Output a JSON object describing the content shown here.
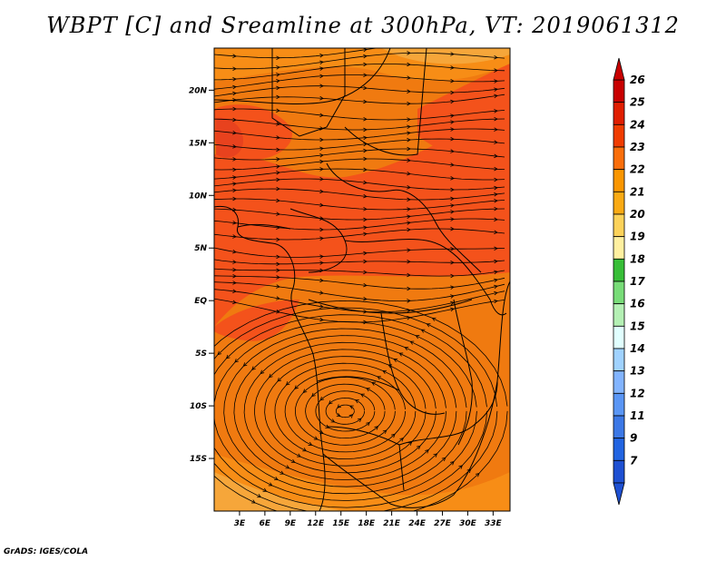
{
  "title": "WBPT [C] and Sreamline at 300hPa, VT: 2019061312",
  "footer": "GrADS: IGES/COLA",
  "map": {
    "lon_range": [
      0,
      35
    ],
    "lat_range": [
      -20,
      24
    ],
    "lat_ticks": [
      "20N",
      "15N",
      "10N",
      "5N",
      "EQ",
      "5S",
      "10S",
      "15S"
    ],
    "lat_values": [
      20,
      15,
      10,
      5,
      0,
      -5,
      -10,
      -15
    ],
    "lon_ticks": [
      "3E",
      "6E",
      "9E",
      "12E",
      "15E",
      "18E",
      "21E",
      "24E",
      "27E",
      "30E",
      "33E"
    ],
    "lon_values": [
      3,
      6,
      9,
      12,
      15,
      18,
      21,
      24,
      27,
      30,
      33
    ],
    "background_color": "#f07a10",
    "cyclone_center": {
      "lon": 15.5,
      "lat": -10.5
    }
  },
  "colorbar": {
    "labels": [
      "26",
      "25",
      "24",
      "23",
      "22",
      "21",
      "20",
      "19",
      "18",
      "17",
      "16",
      "15",
      "14",
      "13",
      "12",
      "11",
      "9",
      "7"
    ],
    "colors": [
      "#c80000",
      "#e01e00",
      "#f03c00",
      "#fa6e0a",
      "#fa9600",
      "#faaa14",
      "#fcd25a",
      "#fff0a0",
      "#37be37",
      "#78dc78",
      "#b4f0b4",
      "#e1ffff",
      "#a0d2ff",
      "#82b4ff",
      "#5a96f5",
      "#3c78e6",
      "#2264e1",
      "#1e50d2"
    ]
  }
}
